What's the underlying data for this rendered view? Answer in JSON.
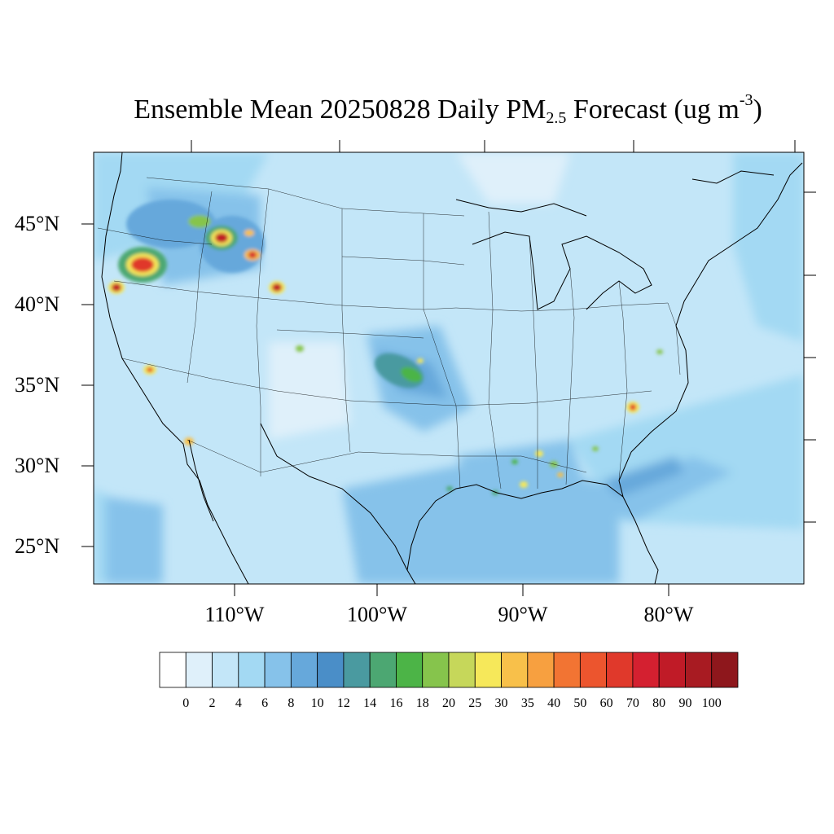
{
  "title": {
    "prefix": "Ensemble Mean 20250828 Daily PM",
    "subscript": "2.5",
    "middle": " Forecast (ug m",
    "superscript": "-3",
    "suffix": ")"
  },
  "lat_labels": [
    "45°N",
    "40°N",
    "35°N",
    "30°N",
    "25°N"
  ],
  "lon_labels": [
    "110°W",
    "100°W",
    "90°W",
    "80°W"
  ],
  "colorbar": {
    "labels": [
      "0",
      "2",
      "4",
      "6",
      "8",
      "10",
      "12",
      "14",
      "16",
      "18",
      "20",
      "25",
      "30",
      "35",
      "40",
      "50",
      "60",
      "70",
      "80",
      "90",
      "100"
    ],
    "colors": [
      "#ffffff",
      "#dff0fa",
      "#c3e6f8",
      "#a3d9f3",
      "#86c2ea",
      "#66a8db",
      "#4a8ec8",
      "#4a9aa0",
      "#4ca772",
      "#4cb447",
      "#86c44c",
      "#c6d75a",
      "#f6e85a",
      "#f8c04a",
      "#f7a040",
      "#f27433",
      "#ec552e",
      "#e0392b",
      "#d42030",
      "#c01b27",
      "#a81b22",
      "#8e171c"
    ]
  },
  "colors": {
    "background_field": "#c3e6f8",
    "coastline": "#000000"
  }
}
